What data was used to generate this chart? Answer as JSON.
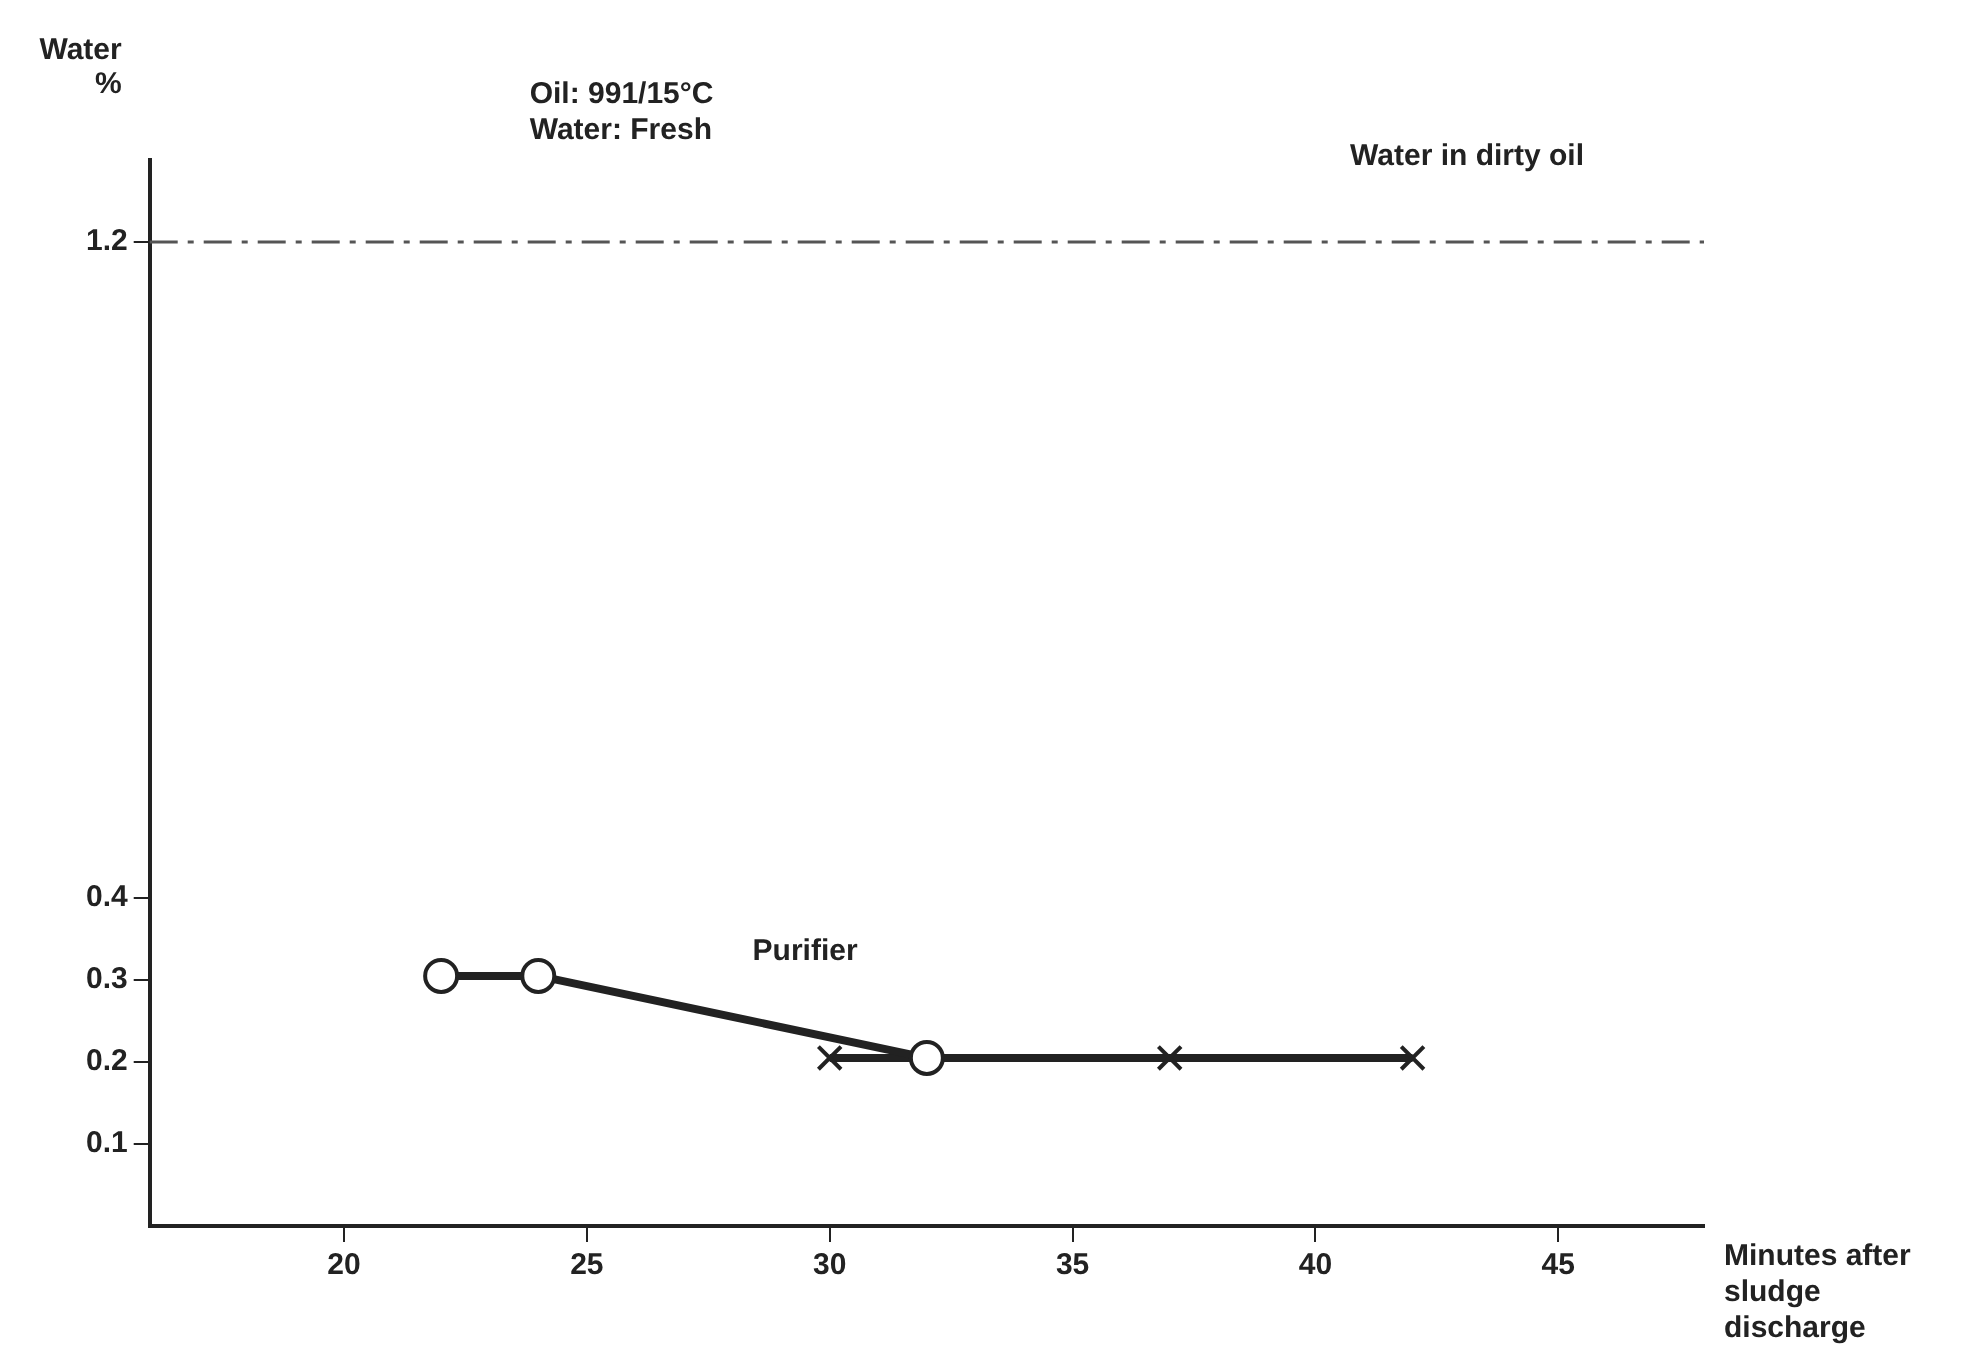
{
  "chart_data": {
    "type": "line",
    "ylabel": "Water %",
    "xlabel": "Minutes after sludge discharge",
    "annotations": [
      "Oil: 991/15°C",
      "Water: Fresh"
    ],
    "xlim": [
      16,
      48
    ],
    "xticks": [
      20,
      25,
      30,
      35,
      40,
      45
    ],
    "ylim": [
      0,
      1.3
    ],
    "yticks": [
      0.1,
      0.2,
      0.3,
      0.4,
      1.2
    ],
    "grid": false,
    "legend": false,
    "ref_lines": [
      {
        "axis": "y",
        "value": 1.2,
        "label": "Water in dirty oil",
        "color": "#555555",
        "line_style": "dashed"
      }
    ],
    "series": [
      {
        "name": "Purifier",
        "color": "#222222",
        "marker": "circle",
        "x": [
          22,
          24,
          32
        ],
        "values": [
          0.305,
          0.305,
          0.205
        ]
      },
      {
        "color": "#222222",
        "marker": "cross",
        "x": [
          30,
          37,
          42
        ],
        "values": [
          0.205,
          0.205,
          0.205
        ]
      }
    ]
  }
}
